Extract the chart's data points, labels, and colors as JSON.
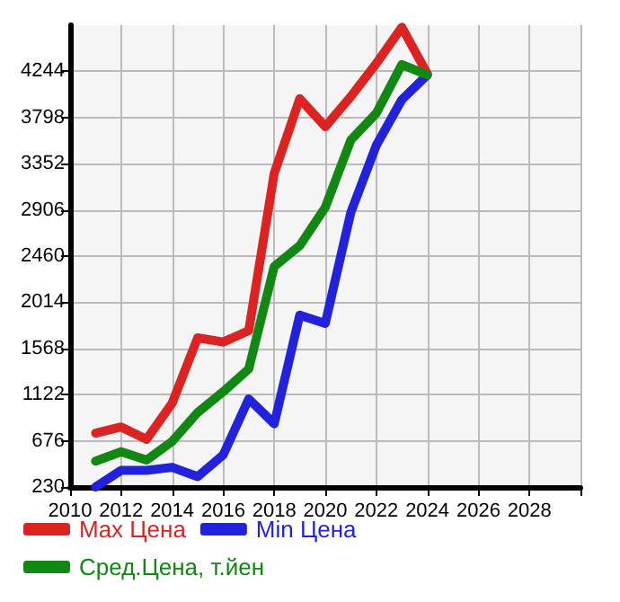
{
  "chart_data": {
    "type": "line",
    "x": [
      2011,
      2012,
      2013,
      2014,
      2015,
      2016,
      2017,
      2018,
      2019,
      2020,
      2021,
      2022,
      2023,
      2024
    ],
    "series": [
      {
        "name": "Max Цена",
        "color": "#dd2222",
        "values": [
          750,
          810,
          690,
          1040,
          1670,
          1630,
          1740,
          3260,
          3980,
          3710,
          4000,
          4320,
          4670,
          4220
        ]
      },
      {
        "name": "Min Цена",
        "color": "#2222dd",
        "values": [
          230,
          390,
          390,
          420,
          330,
          540,
          1080,
          840,
          1890,
          1810,
          2880,
          3530,
          3970,
          4210
        ]
      },
      {
        "name": "Сред.Цена, т.йен",
        "color": "#118811",
        "values": [
          480,
          570,
          490,
          670,
          950,
          1150,
          1370,
          2360,
          2560,
          2930,
          3580,
          3840,
          4310,
          4210
        ]
      }
    ],
    "xlim": [
      2010,
      2030
    ],
    "xticks": [
      2010,
      2012,
      2014,
      2016,
      2018,
      2020,
      2022,
      2024,
      2026,
      2028
    ],
    "ylim": [
      230,
      4690
    ],
    "yticks": [
      230,
      676,
      1122,
      1568,
      2014,
      2460,
      2906,
      3352,
      3798,
      4244
    ],
    "grid": true,
    "legend": "bottom",
    "marker": "none",
    "line_style": "solid"
  }
}
